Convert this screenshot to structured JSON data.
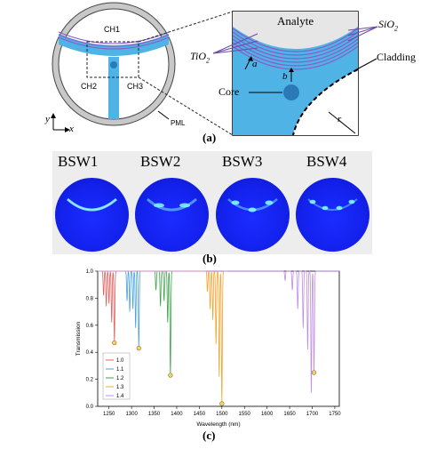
{
  "panel_a": {
    "caption": "(a)",
    "labels": {
      "ch1": "CH1",
      "ch2": "CH2",
      "ch3": "CH3",
      "pml": "PML",
      "axis_y": "y",
      "axis_x": "x",
      "analyte": "Analyte",
      "sio2": "SiO2",
      "tio2": "TiO2",
      "cladding": "Cladding",
      "core": "Core",
      "a": "a",
      "b": "b",
      "r": "r"
    },
    "colors": {
      "fiber_blue": "#4fb3e6",
      "ring_gray": "#c8c8c8",
      "layer_purple": "#8a5ac8",
      "core_blue": "#2a7ab8",
      "analyte_gray": "#e6e6e6"
    }
  },
  "panel_b": {
    "caption": "(b)",
    "modes": [
      "BSW1",
      "BSW2",
      "BSW3",
      "BSW4"
    ],
    "colors": {
      "field_blue": "#1422ee",
      "field_cyan": "#7cf0ff"
    }
  },
  "panel_c": {
    "caption": "(c)",
    "chart_data": {
      "type": "line",
      "xlabel": "Wavelength (nm)",
      "ylabel": "Transmission",
      "xlim": [
        1225,
        1760
      ],
      "ylim": [
        0.0,
        1.0
      ],
      "xticks": [
        1250,
        1300,
        1350,
        1400,
        1450,
        1500,
        1550,
        1600,
        1650,
        1700,
        1750
      ],
      "yticks": [
        0.0,
        0.2,
        0.4,
        0.6,
        0.8,
        1.0
      ],
      "legend_position": "bottom-left",
      "series": [
        {
          "name": "1.0",
          "color": "#e0635f",
          "dips": [
            [
              1238,
              0.82
            ],
            [
              1244,
              0.74
            ],
            [
              1250,
              0.76
            ],
            [
              1256,
              0.62
            ],
            [
              1262,
              0.47
            ]
          ],
          "marker": [
            1262,
            0.47
          ]
        },
        {
          "name": "1.1",
          "color": "#4aa3df",
          "dips": [
            [
              1290,
              0.78
            ],
            [
              1296,
              0.7
            ],
            [
              1303,
              0.72
            ],
            [
              1309,
              0.58
            ],
            [
              1316,
              0.43
            ]
          ],
          "marker": [
            1316,
            0.43
          ]
        },
        {
          "name": "1.2",
          "color": "#3ea34a",
          "dips": [
            [
              1354,
              0.86
            ],
            [
              1364,
              0.74
            ],
            [
              1372,
              0.78
            ],
            [
              1380,
              0.62
            ],
            [
              1386,
              0.23
            ]
          ],
          "marker": [
            1386,
            0.23
          ]
        },
        {
          "name": "1.3",
          "color": "#f0a531",
          "dips": [
            [
              1468,
              0.85
            ],
            [
              1474,
              0.72
            ],
            [
              1480,
              0.64
            ],
            [
              1487,
              0.46
            ],
            [
              1494,
              0.22
            ],
            [
              1500,
              0.02
            ]
          ],
          "marker": [
            1500,
            0.02
          ]
        },
        {
          "name": "1.4",
          "color": "#c08ce6",
          "dips": [
            [
              1640,
              0.93
            ],
            [
              1656,
              0.86
            ],
            [
              1668,
              0.72
            ],
            [
              1680,
              0.58
            ],
            [
              1690,
              0.42
            ],
            [
              1698,
              0.1
            ],
            [
              1704,
              0.25
            ]
          ],
          "marker": [
            1704,
            0.25
          ]
        }
      ]
    }
  }
}
